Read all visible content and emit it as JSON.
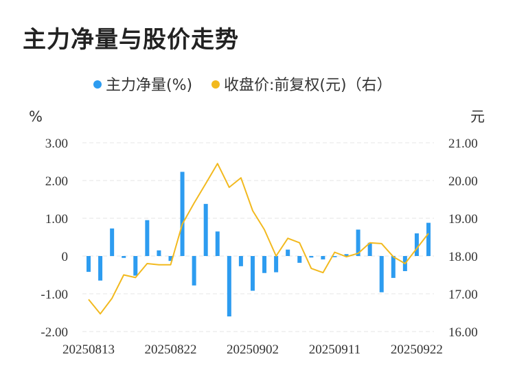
{
  "title": "主力净量与股价走势",
  "legend": {
    "series1": "主力净量(%)",
    "series2": "收盘价:前复权(元)（右）"
  },
  "colors": {
    "bar": "#2d9cf0",
    "line": "#f2b91e",
    "grid": "#e6e6e6"
  },
  "chart_data": {
    "type": "bar+line",
    "y_left_unit": "%",
    "y_right_unit": "元",
    "y_left_ticks": [
      "3.00",
      "2.00",
      "1.00",
      "0",
      "-1.00",
      "-2.00"
    ],
    "y_right_ticks": [
      "21.00",
      "20.00",
      "19.00",
      "18.00",
      "17.00",
      "16.00"
    ],
    "y_left_range": [
      -2,
      3
    ],
    "y_right_range": [
      16,
      21
    ],
    "x_tick_labels": [
      "20250813",
      "20250822",
      "20250902",
      "20250911",
      "20250922"
    ],
    "x_tick_indices": [
      0,
      7,
      14,
      21,
      28
    ],
    "grid": true,
    "legend_position": "top-center",
    "series": [
      {
        "name": "主力净量(%)",
        "type": "bar",
        "axis": "left",
        "values": [
          -0.42,
          -0.65,
          0.73,
          -0.05,
          -0.52,
          0.95,
          0.15,
          -0.13,
          2.23,
          -0.78,
          1.38,
          0.65,
          -1.6,
          -0.27,
          -0.92,
          -0.45,
          -0.43,
          0.17,
          -0.18,
          -0.04,
          -0.09,
          -0.03,
          0.05,
          0.7,
          0.35,
          -0.96,
          -0.58,
          -0.4,
          0.6,
          0.88
        ]
      },
      {
        "name": "收盘价:前复权(元)（右）",
        "type": "line",
        "axis": "right",
        "values": [
          16.85,
          16.47,
          16.88,
          17.5,
          17.43,
          17.8,
          17.77,
          17.77,
          18.85,
          19.4,
          19.92,
          20.45,
          19.82,
          20.07,
          19.2,
          18.7,
          18.0,
          18.47,
          18.35,
          17.67,
          17.56,
          18.1,
          17.98,
          18.07,
          18.35,
          18.33,
          17.98,
          17.8,
          18.2,
          18.6
        ]
      }
    ]
  }
}
